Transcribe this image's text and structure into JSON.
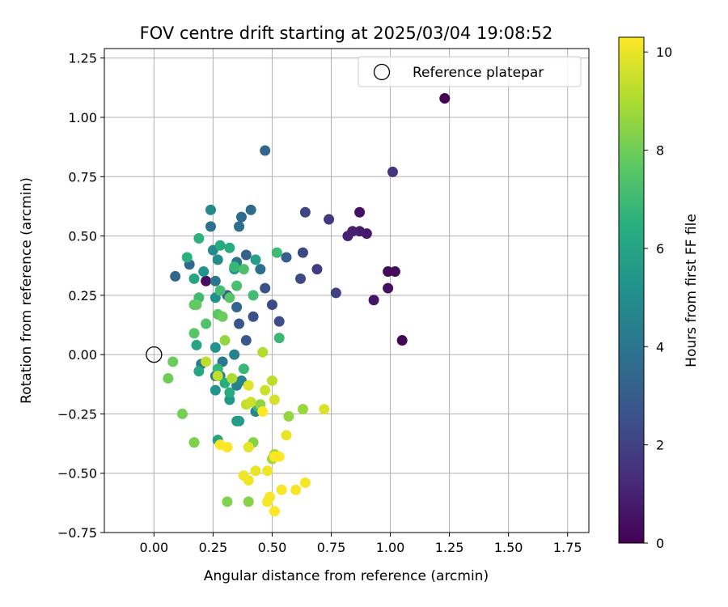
{
  "chart_data": {
    "type": "scatter",
    "title": "FOV centre drift starting at 2025/03/04 19:08:52",
    "xlabel": "Angular distance from reference (arcmin)",
    "ylabel": "Rotation from reference (arcmin)",
    "xlim": [
      -0.21,
      1.84
    ],
    "ylim": [
      -0.75,
      1.29
    ],
    "xticks": [
      0.0,
      0.25,
      0.5,
      0.75,
      1.0,
      1.25,
      1.5,
      1.75
    ],
    "xtick_labels": [
      "0.00",
      "0.25",
      "0.50",
      "0.75",
      "1.00",
      "1.25",
      "1.50",
      "1.75"
    ],
    "yticks": [
      -0.75,
      -0.5,
      -0.25,
      0.0,
      0.25,
      0.5,
      0.75,
      1.0,
      1.25
    ],
    "ytick_labels": [
      "−0.75",
      "−0.50",
      "−0.25",
      "0.00",
      "0.25",
      "0.50",
      "0.75",
      "1.00",
      "1.25"
    ],
    "grid": true,
    "legend": {
      "position": "top-right",
      "entries": [
        {
          "label": "Reference platepar",
          "marker": "open-circle",
          "x": 0.0,
          "y": 0.0
        }
      ]
    },
    "colorbar": {
      "label": "Hours from first FF file",
      "colormap": "viridis",
      "range": [
        0,
        10.3
      ],
      "ticks": [
        0,
        2,
        4,
        6,
        8,
        10
      ],
      "tick_labels": [
        "0",
        "2",
        "4",
        "6",
        "8",
        "10"
      ]
    },
    "points": [
      {
        "x": 1.23,
        "y": 1.08,
        "h": 0.0
      },
      {
        "x": 1.05,
        "y": 0.06,
        "h": 0.1
      },
      {
        "x": 0.99,
        "y": 0.35,
        "h": 0.2
      },
      {
        "x": 1.02,
        "y": 0.35,
        "h": 0.3
      },
      {
        "x": 0.99,
        "y": 0.28,
        "h": 0.4
      },
      {
        "x": 0.87,
        "y": 0.6,
        "h": 0.5
      },
      {
        "x": 0.93,
        "y": 0.23,
        "h": 0.6
      },
      {
        "x": 0.9,
        "y": 0.51,
        "h": 0.7
      },
      {
        "x": 0.87,
        "y": 0.52,
        "h": 0.8
      },
      {
        "x": 0.84,
        "y": 0.52,
        "h": 0.9
      },
      {
        "x": 0.82,
        "y": 0.5,
        "h": 1.0
      },
      {
        "x": 0.22,
        "y": 0.31,
        "h": 0.3
      },
      {
        "x": 1.01,
        "y": 0.77,
        "h": 1.6
      },
      {
        "x": 0.74,
        "y": 0.57,
        "h": 1.7
      },
      {
        "x": 0.69,
        "y": 0.36,
        "h": 1.8
      },
      {
        "x": 0.77,
        "y": 0.26,
        "h": 2.0
      },
      {
        "x": 0.64,
        "y": 0.6,
        "h": 2.1
      },
      {
        "x": 0.63,
        "y": 0.43,
        "h": 2.2
      },
      {
        "x": 0.62,
        "y": 0.32,
        "h": 2.3
      },
      {
        "x": 0.5,
        "y": 0.21,
        "h": 2.3
      },
      {
        "x": 0.53,
        "y": 0.14,
        "h": 2.4
      },
      {
        "x": 0.42,
        "y": 0.16,
        "h": 2.5
      },
      {
        "x": 0.47,
        "y": 0.28,
        "h": 2.6
      },
      {
        "x": 0.36,
        "y": 0.13,
        "h": 2.7
      },
      {
        "x": 0.39,
        "y": 0.06,
        "h": 2.8
      },
      {
        "x": 0.31,
        "y": 0.25,
        "h": 2.9
      },
      {
        "x": 0.56,
        "y": 0.41,
        "h": 3.1
      },
      {
        "x": 0.47,
        "y": 0.86,
        "h": 3.3
      },
      {
        "x": 0.39,
        "y": 0.42,
        "h": 3.2
      },
      {
        "x": 0.35,
        "y": 0.2,
        "h": 3.3
      },
      {
        "x": 0.09,
        "y": 0.33,
        "h": 3.4
      },
      {
        "x": 0.15,
        "y": 0.38,
        "h": 3.5
      },
      {
        "x": 0.41,
        "y": 0.61,
        "h": 3.6
      },
      {
        "x": 0.37,
        "y": 0.58,
        "h": 3.6
      },
      {
        "x": 0.36,
        "y": 0.54,
        "h": 3.7
      },
      {
        "x": 0.24,
        "y": 0.54,
        "h": 3.8
      },
      {
        "x": 0.45,
        "y": 0.36,
        "h": 3.8
      },
      {
        "x": 0.35,
        "y": 0.39,
        "h": 3.9
      },
      {
        "x": 0.26,
        "y": 0.31,
        "h": 4.0
      },
      {
        "x": 0.29,
        "y": -0.03,
        "h": 4.1
      },
      {
        "x": 0.2,
        "y": -0.04,
        "h": 4.2
      },
      {
        "x": 0.26,
        "y": -0.09,
        "h": 4.3
      },
      {
        "x": 0.28,
        "y": -0.09,
        "h": 4.4
      },
      {
        "x": 0.34,
        "y": 0.0,
        "h": 4.5
      },
      {
        "x": 0.35,
        "y": -0.13,
        "h": 4.5
      },
      {
        "x": 0.37,
        "y": -0.11,
        "h": 4.6
      },
      {
        "x": 0.43,
        "y": -0.24,
        "h": 4.7
      },
      {
        "x": 0.24,
        "y": 0.61,
        "h": 4.8
      },
      {
        "x": 0.25,
        "y": 0.44,
        "h": 4.9
      },
      {
        "x": 0.27,
        "y": 0.4,
        "h": 5.0
      },
      {
        "x": 0.26,
        "y": 0.24,
        "h": 5.1
      },
      {
        "x": 0.21,
        "y": 0.35,
        "h": 5.2
      },
      {
        "x": 0.26,
        "y": 0.03,
        "h": 5.3
      },
      {
        "x": 0.26,
        "y": -0.15,
        "h": 5.3
      },
      {
        "x": 0.32,
        "y": -0.19,
        "h": 5.4
      },
      {
        "x": 0.34,
        "y": 0.36,
        "h": 5.5
      },
      {
        "x": 0.36,
        "y": -0.28,
        "h": 5.6
      },
      {
        "x": 0.35,
        "y": -0.28,
        "h": 5.7
      },
      {
        "x": 0.43,
        "y": 0.4,
        "h": 5.8
      },
      {
        "x": 0.27,
        "y": -0.36,
        "h": 5.9
      },
      {
        "x": 0.17,
        "y": 0.32,
        "h": 6.0
      },
      {
        "x": 0.18,
        "y": 0.04,
        "h": 6.0
      },
      {
        "x": 0.19,
        "y": -0.07,
        "h": 6.1
      },
      {
        "x": 0.28,
        "y": 0.46,
        "h": 6.2
      },
      {
        "x": 0.32,
        "y": 0.45,
        "h": 6.3
      },
      {
        "x": 0.32,
        "y": -0.16,
        "h": 6.3
      },
      {
        "x": 0.3,
        "y": -0.12,
        "h": 6.4
      },
      {
        "x": 0.14,
        "y": 0.41,
        "h": 6.5
      },
      {
        "x": 0.19,
        "y": 0.49,
        "h": 6.6
      },
      {
        "x": 0.27,
        "y": -0.06,
        "h": 6.7
      },
      {
        "x": 0.34,
        "y": 0.37,
        "h": 6.8
      },
      {
        "x": 0.44,
        "y": -0.22,
        "h": 6.9
      },
      {
        "x": 0.53,
        "y": 0.07,
        "h": 6.9
      },
      {
        "x": 0.38,
        "y": -0.06,
        "h": 6.9
      },
      {
        "x": 0.52,
        "y": 0.43,
        "h": 7.0
      },
      {
        "x": 0.19,
        "y": 0.24,
        "h": 7.0
      },
      {
        "x": 0.42,
        "y": 0.25,
        "h": 7.1
      },
      {
        "x": 0.28,
        "y": 0.27,
        "h": 7.1
      },
      {
        "x": 0.35,
        "y": 0.29,
        "h": 7.2
      },
      {
        "x": 0.38,
        "y": 0.36,
        "h": 7.3
      },
      {
        "x": 0.22,
        "y": 0.13,
        "h": 7.4
      },
      {
        "x": 0.32,
        "y": 0.24,
        "h": 7.5
      },
      {
        "x": 0.27,
        "y": 0.17,
        "h": 7.6
      },
      {
        "x": 0.17,
        "y": 0.09,
        "h": 7.6
      },
      {
        "x": 0.17,
        "y": 0.21,
        "h": 7.7
      },
      {
        "x": 0.18,
        "y": 0.21,
        "h": 7.8
      },
      {
        "x": 0.29,
        "y": 0.16,
        "h": 7.9
      },
      {
        "x": 0.08,
        "y": -0.03,
        "h": 7.9
      },
      {
        "x": 0.06,
        "y": -0.1,
        "h": 8.0
      },
      {
        "x": 0.12,
        "y": -0.25,
        "h": 8.1
      },
      {
        "x": 0.17,
        "y": -0.37,
        "h": 8.2
      },
      {
        "x": 0.31,
        "y": -0.62,
        "h": 8.3
      },
      {
        "x": 0.4,
        "y": -0.62,
        "h": 8.4
      },
      {
        "x": 0.42,
        "y": -0.37,
        "h": 8.4
      },
      {
        "x": 0.45,
        "y": -0.21,
        "h": 8.5
      },
      {
        "x": 0.57,
        "y": -0.26,
        "h": 8.6
      },
      {
        "x": 0.63,
        "y": -0.23,
        "h": 8.7
      },
      {
        "x": 0.5,
        "y": -0.44,
        "h": 8.8
      },
      {
        "x": 0.51,
        "y": -0.42,
        "h": 8.9
      },
      {
        "x": 0.3,
        "y": 0.06,
        "h": 8.6
      },
      {
        "x": 0.33,
        "y": -0.1,
        "h": 9.0
      },
      {
        "x": 0.46,
        "y": 0.01,
        "h": 9.1
      },
      {
        "x": 0.5,
        "y": -0.11,
        "h": 9.2
      },
      {
        "x": 0.27,
        "y": -0.09,
        "h": 9.3
      },
      {
        "x": 0.22,
        "y": -0.03,
        "h": 9.3
      },
      {
        "x": 0.39,
        "y": -0.21,
        "h": 9.4
      },
      {
        "x": 0.41,
        "y": -0.2,
        "h": 9.5
      },
      {
        "x": 0.47,
        "y": -0.15,
        "h": 9.5
      },
      {
        "x": 0.51,
        "y": -0.19,
        "h": 9.6
      },
      {
        "x": 0.72,
        "y": -0.23,
        "h": 9.7
      },
      {
        "x": 0.4,
        "y": -0.13,
        "h": 9.8
      },
      {
        "x": 0.4,
        "y": -0.39,
        "h": 9.9
      },
      {
        "x": 0.56,
        "y": -0.34,
        "h": 10.0
      },
      {
        "x": 0.43,
        "y": -0.49,
        "h": 10.0
      },
      {
        "x": 0.48,
        "y": -0.49,
        "h": 10.1
      },
      {
        "x": 0.38,
        "y": -0.51,
        "h": 10.1
      },
      {
        "x": 0.4,
        "y": -0.53,
        "h": 10.1
      },
      {
        "x": 0.54,
        "y": -0.57,
        "h": 10.2
      },
      {
        "x": 0.6,
        "y": -0.57,
        "h": 10.2
      },
      {
        "x": 0.64,
        "y": -0.54,
        "h": 10.2
      },
      {
        "x": 0.49,
        "y": -0.6,
        "h": 10.2
      },
      {
        "x": 0.48,
        "y": -0.62,
        "h": 10.2
      },
      {
        "x": 0.51,
        "y": -0.66,
        "h": 10.3
      },
      {
        "x": 0.51,
        "y": -0.43,
        "h": 10.3
      },
      {
        "x": 0.53,
        "y": -0.43,
        "h": 10.3
      },
      {
        "x": 0.28,
        "y": -0.38,
        "h": 10.3
      },
      {
        "x": 0.31,
        "y": -0.39,
        "h": 10.3
      },
      {
        "x": 0.46,
        "y": -0.24,
        "h": 10.3
      }
    ]
  }
}
